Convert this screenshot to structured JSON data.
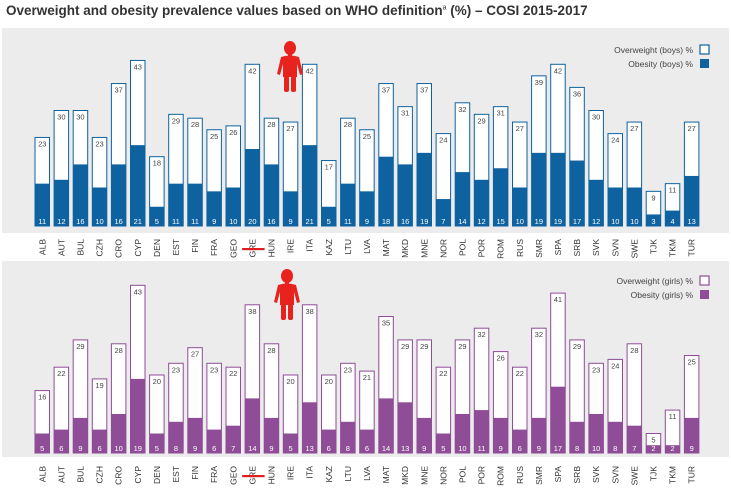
{
  "title": {
    "main": "Overweight and obesity prevalence values based on WHO definition",
    "footnote_mark": "a",
    "suffix": " (%)  – COSI 2015-2017"
  },
  "colors": {
    "boys": "#0e62a0",
    "girls": "#8e4d96",
    "panel": "#ececec",
    "highlight": "#e02020",
    "figure": "#e8231e"
  },
  "highlight_country": "GRE",
  "icons": [
    "boy-figure-icon",
    "girl-figure-icon"
  ],
  "chart_data": [
    {
      "type": "bar",
      "name": "boys",
      "categories": [
        "ALB",
        "AUT",
        "BUL",
        "CZH",
        "CRO",
        "CYP",
        "DEN",
        "EST",
        "FIN",
        "FRA",
        "GEO",
        "GRE",
        "HUN",
        "IRE",
        "ITA",
        "KAZ",
        "LTU",
        "LVA",
        "MAT",
        "MKD",
        "MNE",
        "NOR",
        "POL",
        "POR",
        "ROM",
        "RUS",
        "SMR",
        "SPA",
        "SRB",
        "SVK",
        "SVN",
        "SWE",
        "TJK",
        "TKM",
        "TUR"
      ],
      "series": [
        {
          "name": "Overweight (boys) %",
          "values": [
            23,
            30,
            30,
            23,
            37,
            43,
            18,
            29,
            28,
            25,
            26,
            42,
            28,
            27,
            42,
            17,
            28,
            25,
            37,
            31,
            37,
            24,
            32,
            29,
            31,
            27,
            39,
            42,
            36,
            30,
            24,
            27,
            9,
            11,
            27
          ]
        },
        {
          "name": "Obesity (boys) %",
          "values": [
            11,
            12,
            16,
            10,
            16,
            21,
            5,
            11,
            11,
            9,
            10,
            20,
            16,
            9,
            21,
            5,
            11,
            9,
            18,
            16,
            19,
            7,
            14,
            12,
            15,
            10,
            19,
            19,
            17,
            12,
            10,
            10,
            3,
            4,
            13
          ]
        }
      ],
      "legend_position": "top-right"
    },
    {
      "type": "bar",
      "name": "girls",
      "categories": [
        "ALB",
        "AUT",
        "BUL",
        "CZH",
        "CRO",
        "CYP",
        "DEN",
        "EST",
        "FIN",
        "FRA",
        "GEO",
        "GRE",
        "HUN",
        "IRE",
        "ITA",
        "KAZ",
        "LTU",
        "LVA",
        "MAT",
        "MKD",
        "MNE",
        "NOR",
        "POL",
        "POR",
        "ROM",
        "RUS",
        "SMR",
        "SPA",
        "SRB",
        "SVK",
        "SVN",
        "SWE",
        "TJK",
        "TKM",
        "TUR"
      ],
      "series": [
        {
          "name": "Overweight (girls) %",
          "values": [
            16,
            22,
            29,
            19,
            28,
            43,
            20,
            23,
            27,
            23,
            22,
            38,
            28,
            20,
            38,
            20,
            23,
            21,
            35,
            29,
            29,
            22,
            29,
            32,
            26,
            22,
            32,
            41,
            29,
            23,
            24,
            28,
            5,
            11,
            25
          ]
        },
        {
          "name": "Obesity (girls) %",
          "values": [
            5,
            6,
            9,
            6,
            10,
            19,
            5,
            8,
            9,
            6,
            7,
            14,
            9,
            5,
            13,
            6,
            8,
            6,
            14,
            13,
            9,
            5,
            10,
            11,
            9,
            6,
            9,
            17,
            8,
            10,
            8,
            7,
            2,
            2,
            9
          ]
        }
      ],
      "legend_position": "top-right"
    }
  ]
}
